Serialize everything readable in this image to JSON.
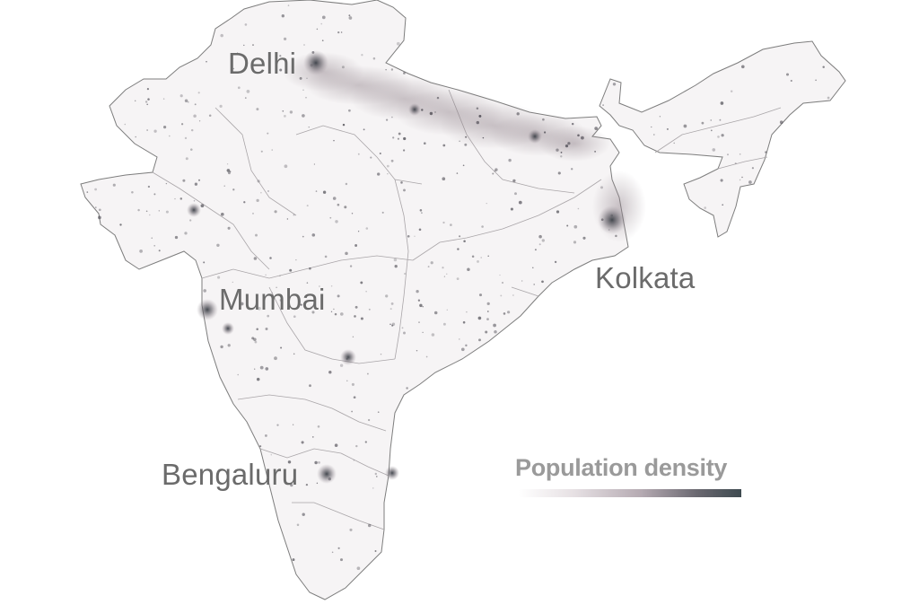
{
  "map": {
    "cities": [
      {
        "id": "delhi",
        "name": "Delhi"
      },
      {
        "id": "mumbai",
        "name": "Mumbai"
      },
      {
        "id": "kolkata",
        "name": "Kolkata"
      },
      {
        "id": "bengaluru",
        "name": "Bengaluru"
      }
    ]
  },
  "legend": {
    "title": "Population density",
    "scale_low_color": "#ffffff",
    "scale_high_color": "#3e4a50"
  },
  "colors": {
    "land": "#f6f4f5",
    "border": "#7d7d7d",
    "dense_band": "#bdb3bb",
    "city_dot": "#3a3f46"
  }
}
